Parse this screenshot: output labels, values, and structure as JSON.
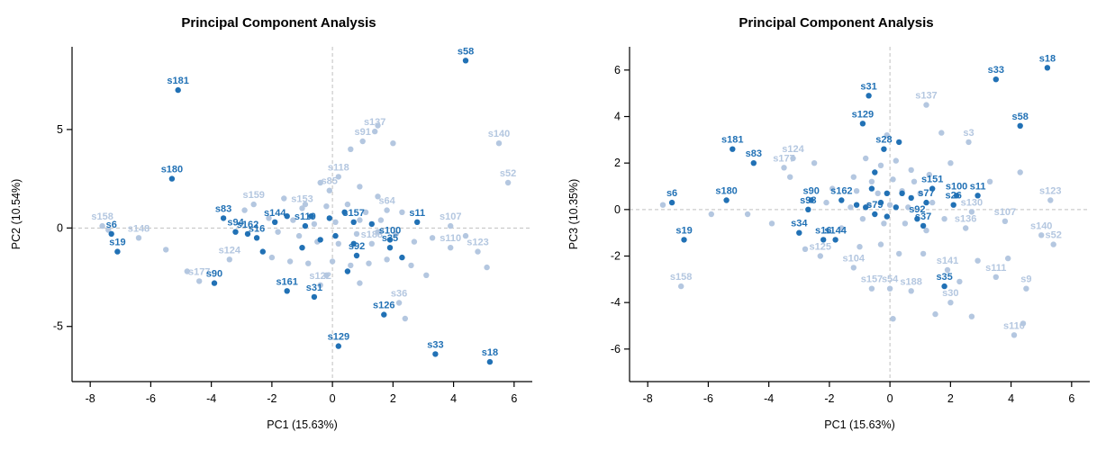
{
  "figure": {
    "background": "#ffffff",
    "panel_count": 2
  },
  "chart_data": [
    {
      "type": "scatter",
      "title": "Principal Component Analysis",
      "xlabel": "PC1 (15.63%)",
      "ylabel": "PC2 (10.54%)",
      "xlim": [
        -8.6,
        6.6
      ],
      "ylim": [
        -7.8,
        9.2
      ],
      "xticks": [
        -8,
        -6,
        -4,
        -2,
        0,
        2,
        4,
        6
      ],
      "yticks": [
        -5,
        0,
        5
      ],
      "grid": false,
      "zero_guidelines": true,
      "colors": {
        "dark": "#2171B5",
        "light": "#B4C7E0",
        "guideline": "#C0C0C0",
        "axis": "#000000"
      },
      "series": [
        {
          "name": "background-samples",
          "color": "light",
          "labeled": [
            {
              "id": "s137",
              "x": 1.4,
              "y": 4.9
            },
            {
              "id": "s91",
              "x": 1.0,
              "y": 4.4
            },
            {
              "id": "s140",
              "x": 5.5,
              "y": 4.3
            },
            {
              "id": "s52",
              "x": 5.8,
              "y": 2.3
            },
            {
              "id": "s118",
              "x": 0.2,
              "y": 2.6
            },
            {
              "id": "s85",
              "x": -0.1,
              "y": 1.9
            },
            {
              "id": "s159",
              "x": -2.6,
              "y": 1.2
            },
            {
              "id": "s153",
              "x": -1.0,
              "y": 1.0
            },
            {
              "id": "s64",
              "x": 1.8,
              "y": 0.9
            },
            {
              "id": "s107",
              "x": 3.9,
              "y": 0.1
            },
            {
              "id": "s158",
              "x": -7.6,
              "y": 0.1
            },
            {
              "id": "s148",
              "x": -6.4,
              "y": -0.5
            },
            {
              "id": "s188",
              "x": 1.3,
              "y": -0.8
            },
            {
              "id": "s110",
              "x": 3.9,
              "y": -1.0
            },
            {
              "id": "s123",
              "x": 4.8,
              "y": -1.2
            },
            {
              "id": "s124",
              "x": -3.4,
              "y": -1.6
            },
            {
              "id": "s177",
              "x": -4.4,
              "y": -2.7
            },
            {
              "id": "s122",
              "x": -0.4,
              "y": -2.9
            },
            {
              "id": "s36",
              "x": 2.2,
              "y": -3.8
            }
          ],
          "unlabeled": [
            [
              1.5,
              5.2
            ],
            [
              0.6,
              4.0
            ],
            [
              2.0,
              4.3
            ],
            [
              -0.4,
              2.3
            ],
            [
              0.9,
              2.1
            ],
            [
              1.5,
              1.6
            ],
            [
              -1.6,
              1.5
            ],
            [
              -0.9,
              1.2
            ],
            [
              -0.2,
              1.1
            ],
            [
              0.5,
              1.2
            ],
            [
              1.1,
              0.8
            ],
            [
              -2.1,
              0.5
            ],
            [
              -1.3,
              0.4
            ],
            [
              -0.6,
              0.2
            ],
            [
              0.1,
              0.3
            ],
            [
              0.9,
              0.4
            ],
            [
              1.6,
              0.4
            ],
            [
              2.3,
              0.8
            ],
            [
              -1.8,
              -0.2
            ],
            [
              -1.1,
              -0.4
            ],
            [
              -0.5,
              -0.7
            ],
            [
              0.2,
              -0.8
            ],
            [
              0.8,
              -0.3
            ],
            [
              1.5,
              -0.2
            ],
            [
              2.1,
              -0.3
            ],
            [
              2.7,
              -0.7
            ],
            [
              3.3,
              -0.5
            ],
            [
              -2.0,
              -1.5
            ],
            [
              -1.4,
              -1.7
            ],
            [
              -0.8,
              -1.8
            ],
            [
              0.0,
              -1.7
            ],
            [
              0.6,
              -1.9
            ],
            [
              1.2,
              -1.8
            ],
            [
              1.8,
              -1.6
            ],
            [
              2.6,
              -1.9
            ],
            [
              3.1,
              -2.4
            ],
            [
              5.1,
              -2.0
            ],
            [
              4.4,
              -0.4
            ],
            [
              -5.5,
              -1.1
            ],
            [
              -4.8,
              -2.2
            ],
            [
              -0.2,
              -2.4
            ],
            [
              0.9,
              -2.8
            ],
            [
              2.4,
              -4.6
            ],
            [
              -7.4,
              -0.1
            ],
            [
              -2.9,
              0.9
            ]
          ]
        },
        {
          "name": "highlighted-samples",
          "color": "dark",
          "labeled": [
            {
              "id": "s58",
              "x": 4.4,
              "y": 8.5
            },
            {
              "id": "s181",
              "x": -5.1,
              "y": 7.0
            },
            {
              "id": "s180",
              "x": -5.3,
              "y": 2.5
            },
            {
              "id": "s83",
              "x": -3.6,
              "y": 0.5
            },
            {
              "id": "s94",
              "x": -3.2,
              "y": -0.2
            },
            {
              "id": "s144",
              "x": -1.9,
              "y": 0.3
            },
            {
              "id": "s119",
              "x": -0.9,
              "y": 0.1
            },
            {
              "id": "s157",
              "x": 0.7,
              "y": 0.3
            },
            {
              "id": "s11",
              "x": 2.8,
              "y": 0.3
            },
            {
              "id": "s6",
              "x": -7.3,
              "y": -0.3
            },
            {
              "id": "s19",
              "x": -7.1,
              "y": -1.2
            },
            {
              "id": "s162",
              "x": -2.8,
              "y": -0.3
            },
            {
              "id": "s16",
              "x": -2.5,
              "y": -0.5
            },
            {
              "id": "s100",
              "x": 1.9,
              "y": -0.6
            },
            {
              "id": "s35",
              "x": 1.9,
              "y": -1.0
            },
            {
              "id": "s92",
              "x": 0.8,
              "y": -1.4
            },
            {
              "id": "s90",
              "x": -3.9,
              "y": -2.8
            },
            {
              "id": "s161",
              "x": -1.5,
              "y": -3.2
            },
            {
              "id": "s31",
              "x": -0.6,
              "y": -3.5
            },
            {
              "id": "s126",
              "x": 1.7,
              "y": -4.4
            },
            {
              "id": "s129",
              "x": 0.2,
              "y": -6.0
            },
            {
              "id": "s33",
              "x": 3.4,
              "y": -6.4
            },
            {
              "id": "s18",
              "x": 5.2,
              "y": -6.8
            }
          ],
          "unlabeled": [
            [
              -0.7,
              0.6
            ],
            [
              -0.1,
              0.5
            ],
            [
              0.4,
              0.8
            ],
            [
              -0.4,
              -0.6
            ],
            [
              0.1,
              -0.4
            ],
            [
              0.7,
              -0.8
            ],
            [
              -1.0,
              -1.0
            ],
            [
              1.3,
              0.2
            ],
            [
              -1.5,
              0.6
            ],
            [
              0.5,
              -2.2
            ],
            [
              2.3,
              -1.5
            ],
            [
              -2.3,
              -1.2
            ]
          ]
        }
      ]
    },
    {
      "type": "scatter",
      "title": "Principal Component Analysis",
      "xlabel": "PC1 (15.63%)",
      "ylabel": "PC3 (10.35%)",
      "xlim": [
        -8.6,
        6.6
      ],
      "ylim": [
        -7.4,
        7.0
      ],
      "xticks": [
        -8,
        -6,
        -4,
        -2,
        0,
        2,
        4,
        6
      ],
      "yticks": [
        -6,
        -4,
        -2,
        0,
        2,
        4,
        6
      ],
      "grid": false,
      "zero_guidelines": true,
      "colors": {
        "dark": "#2171B5",
        "light": "#B4C7E0",
        "guideline": "#C0C0C0",
        "axis": "#000000"
      },
      "series": [
        {
          "name": "background-samples",
          "color": "light",
          "labeled": [
            {
              "id": "s137",
              "x": 1.2,
              "y": 4.5
            },
            {
              "id": "s3",
              "x": 2.6,
              "y": 2.9
            },
            {
              "id": "s124",
              "x": -3.2,
              "y": 2.2
            },
            {
              "id": "s177",
              "x": -3.5,
              "y": 1.8
            },
            {
              "id": "s123",
              "x": 5.3,
              "y": 0.4
            },
            {
              "id": "s130",
              "x": 2.7,
              "y": -0.1
            },
            {
              "id": "s107",
              "x": 3.8,
              "y": -0.5
            },
            {
              "id": "s136",
              "x": 2.5,
              "y": -0.8
            },
            {
              "id": "s140",
              "x": 5.0,
              "y": -1.1
            },
            {
              "id": "s52",
              "x": 5.4,
              "y": -1.5
            },
            {
              "id": "s125",
              "x": -2.3,
              "y": -2.0
            },
            {
              "id": "s104",
              "x": -1.2,
              "y": -2.5
            },
            {
              "id": "s141",
              "x": 1.9,
              "y": -2.6
            },
            {
              "id": "s111",
              "x": 3.5,
              "y": -2.9
            },
            {
              "id": "s9",
              "x": 4.5,
              "y": -3.4
            },
            {
              "id": "s157",
              "x": -0.6,
              "y": -3.4
            },
            {
              "id": "s54",
              "x": 0.0,
              "y": -3.4
            },
            {
              "id": "s188",
              "x": 0.7,
              "y": -3.5
            },
            {
              "id": "s30",
              "x": 2.0,
              "y": -4.0
            },
            {
              "id": "s158",
              "x": -6.9,
              "y": -3.3
            },
            {
              "id": "s110",
              "x": 4.1,
              "y": -5.4
            }
          ],
          "unlabeled": [
            [
              -0.8,
              2.2
            ],
            [
              -0.3,
              1.9
            ],
            [
              0.2,
              2.1
            ],
            [
              0.7,
              1.7
            ],
            [
              -1.2,
              1.4
            ],
            [
              -0.6,
              1.2
            ],
            [
              0.1,
              1.3
            ],
            [
              0.8,
              1.2
            ],
            [
              1.3,
              1.5
            ],
            [
              -1.9,
              0.9
            ],
            [
              -1.1,
              0.8
            ],
            [
              -0.4,
              0.7
            ],
            [
              0.4,
              0.8
            ],
            [
              1.0,
              0.7
            ],
            [
              -2.1,
              0.3
            ],
            [
              -1.3,
              0.1
            ],
            [
              -0.7,
              0.2
            ],
            [
              0.0,
              0.2
            ],
            [
              0.6,
              0.1
            ],
            [
              1.4,
              0.3
            ],
            [
              -0.9,
              -0.4
            ],
            [
              -0.2,
              -0.6
            ],
            [
              0.5,
              -0.6
            ],
            [
              1.2,
              -0.9
            ],
            [
              1.8,
              -0.4
            ],
            [
              -1.6,
              -0.8
            ],
            [
              -2.8,
              -1.7
            ],
            [
              -1.0,
              -1.6
            ],
            [
              -0.3,
              -1.5
            ],
            [
              0.3,
              -1.9
            ],
            [
              1.1,
              -1.9
            ],
            [
              2.9,
              -2.2
            ],
            [
              3.9,
              -2.1
            ],
            [
              2.3,
              -3.1
            ],
            [
              1.5,
              -4.5
            ],
            [
              2.7,
              -4.6
            ],
            [
              0.1,
              -4.7
            ],
            [
              4.4,
              -4.9
            ],
            [
              -3.9,
              -0.6
            ],
            [
              -4.7,
              -0.2
            ],
            [
              -5.9,
              -0.2
            ],
            [
              -3.3,
              1.4
            ],
            [
              -2.5,
              2.0
            ],
            [
              2.0,
              2.0
            ],
            [
              3.3,
              1.2
            ],
            [
              4.3,
              1.6
            ],
            [
              1.7,
              3.3
            ],
            [
              -0.1,
              3.2
            ],
            [
              -7.5,
              0.2
            ]
          ]
        },
        {
          "name": "highlighted-samples",
          "color": "dark",
          "labeled": [
            {
              "id": "s18",
              "x": 5.2,
              "y": 6.1
            },
            {
              "id": "s33",
              "x": 3.5,
              "y": 5.6
            },
            {
              "id": "s31",
              "x": -0.7,
              "y": 4.9
            },
            {
              "id": "s129",
              "x": -0.9,
              "y": 3.7
            },
            {
              "id": "s58",
              "x": 4.3,
              "y": 3.6
            },
            {
              "id": "s28",
              "x": -0.2,
              "y": 2.6
            },
            {
              "id": "s181",
              "x": -5.2,
              "y": 2.6
            },
            {
              "id": "s83",
              "x": -4.5,
              "y": 2.0
            },
            {
              "id": "s180",
              "x": -5.4,
              "y": 0.4
            },
            {
              "id": "s6",
              "x": -7.2,
              "y": 0.3
            },
            {
              "id": "s90",
              "x": -2.6,
              "y": 0.4
            },
            {
              "id": "s98",
              "x": -2.7,
              "y": 0.0
            },
            {
              "id": "s162",
              "x": -1.6,
              "y": 0.4
            },
            {
              "id": "s151",
              "x": 1.4,
              "y": 0.9
            },
            {
              "id": "s100",
              "x": 2.2,
              "y": 0.6
            },
            {
              "id": "s11",
              "x": 2.9,
              "y": 0.6
            },
            {
              "id": "s77",
              "x": 1.2,
              "y": 0.3
            },
            {
              "id": "s26",
              "x": 2.1,
              "y": 0.2
            },
            {
              "id": "s79",
              "x": -0.5,
              "y": -0.2
            },
            {
              "id": "s92",
              "x": 0.9,
              "y": -0.4
            },
            {
              "id": "s37",
              "x": 1.1,
              "y": -0.7
            },
            {
              "id": "s34",
              "x": -3.0,
              "y": -1.0
            },
            {
              "id": "s16",
              "x": -2.2,
              "y": -1.3
            },
            {
              "id": "s144",
              "x": -1.8,
              "y": -1.3
            },
            {
              "id": "s19",
              "x": -6.8,
              "y": -1.3
            },
            {
              "id": "s35",
              "x": 1.8,
              "y": -3.3
            }
          ],
          "unlabeled": [
            [
              -0.6,
              0.9
            ],
            [
              -0.1,
              0.7
            ],
            [
              0.4,
              0.7
            ],
            [
              -0.3,
              0.3
            ],
            [
              0.2,
              0.1
            ],
            [
              -0.8,
              0.1
            ],
            [
              0.7,
              0.5
            ],
            [
              -0.1,
              -0.3
            ],
            [
              -1.1,
              0.2
            ],
            [
              0.3,
              2.9
            ],
            [
              -0.5,
              1.6
            ]
          ]
        }
      ]
    }
  ]
}
